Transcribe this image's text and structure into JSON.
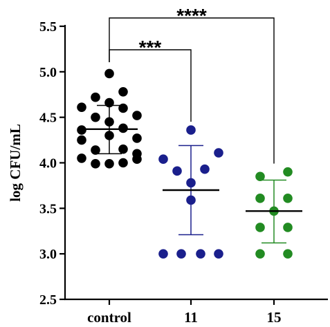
{
  "chart_data": {
    "type": "scatter",
    "ylabel": "log CFU/mL",
    "ylim": [
      2.5,
      5.5
    ],
    "yticks": [
      2.5,
      3.0,
      3.5,
      4.0,
      4.5,
      5.0,
      5.5
    ],
    "ytick_labels": [
      "2.5",
      "3.0",
      "3.5",
      "4.0",
      "4.5",
      "5.0",
      "5.5"
    ],
    "categories": [
      "control",
      "11",
      "15"
    ],
    "grid": false,
    "series": [
      {
        "category": "control",
        "color": "#000000",
        "mean": 4.37,
        "sd_low": 4.1,
        "sd_high": 4.63,
        "points": [
          {
            "dx": 0,
            "y": 4.98
          },
          {
            "dx": -1,
            "y": 4.72
          },
          {
            "dx": 1,
            "y": 4.78
          },
          {
            "dx": -2,
            "y": 4.61
          },
          {
            "dx": 0,
            "y": 4.66
          },
          {
            "dx": 1,
            "y": 4.6
          },
          {
            "dx": -1,
            "y": 4.5
          },
          {
            "dx": 0,
            "y": 4.45
          },
          {
            "dx": 2,
            "y": 4.52
          },
          {
            "dx": -2,
            "y": 4.36
          },
          {
            "dx": 1,
            "y": 4.38
          },
          {
            "dx": -2,
            "y": 4.25
          },
          {
            "dx": 0,
            "y": 4.3
          },
          {
            "dx": 2,
            "y": 4.27
          },
          {
            "dx": -1,
            "y": 4.14
          },
          {
            "dx": 1,
            "y": 4.15
          },
          {
            "dx": 2,
            "y": 4.1
          },
          {
            "dx": -2,
            "y": 4.05
          },
          {
            "dx": 2,
            "y": 4.04
          },
          {
            "dx": -1,
            "y": 3.99
          },
          {
            "dx": 0,
            "y": 3.99
          },
          {
            "dx": 1,
            "y": 4.0
          }
        ]
      },
      {
        "category": "11",
        "color": "#1a1f8c",
        "mean": 3.7,
        "sd_low": 3.21,
        "sd_high": 4.19,
        "points": [
          {
            "dx": 0,
            "y": 4.36
          },
          {
            "dx": -2,
            "y": 4.04
          },
          {
            "dx": 2,
            "y": 4.11
          },
          {
            "dx": -1,
            "y": 3.91
          },
          {
            "dx": 1,
            "y": 3.93
          },
          {
            "dx": 0,
            "y": 3.78
          },
          {
            "dx": 0,
            "y": 3.59
          },
          {
            "dx": -2,
            "y": 3.0
          },
          {
            "dx": -0.7,
            "y": 3.0
          },
          {
            "dx": 0.7,
            "y": 3.0
          },
          {
            "dx": 2,
            "y": 3.0
          }
        ]
      },
      {
        "category": "15",
        "color": "#228b22",
        "mean": 3.47,
        "sd_low": 3.12,
        "sd_high": 3.81,
        "points": [
          {
            "dx": -1,
            "y": 3.85
          },
          {
            "dx": 1,
            "y": 3.9
          },
          {
            "dx": -1,
            "y": 3.61
          },
          {
            "dx": 1,
            "y": 3.61
          },
          {
            "dx": 0,
            "y": 3.47
          },
          {
            "dx": -1,
            "y": 3.29
          },
          {
            "dx": 1,
            "y": 3.29
          },
          {
            "dx": -1,
            "y": 3.0
          },
          {
            "dx": 1,
            "y": 3.0
          }
        ]
      }
    ],
    "annotations": [
      {
        "from": "control",
        "to": "11",
        "label": "***"
      },
      {
        "from": "control",
        "to": "15",
        "label": "****"
      }
    ]
  }
}
